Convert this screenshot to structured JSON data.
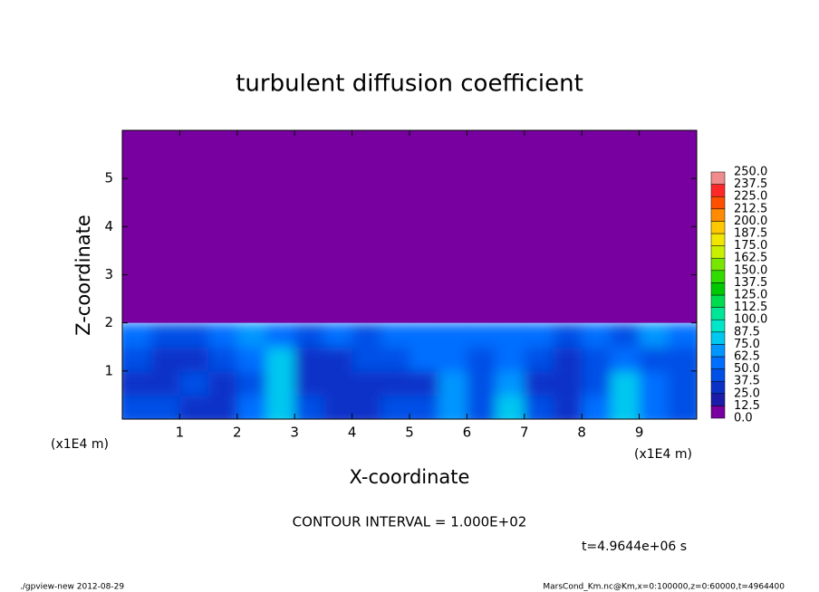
{
  "chart_data": {
    "type": "contour",
    "title": "turbulent diffusion coefficient",
    "xlabel": "X-coordinate",
    "ylabel": "Z-coordinate",
    "unit_label": "(x1E4 m)",
    "xlim": [
      0,
      10
    ],
    "ylim": [
      0,
      6
    ],
    "xticks": [
      1,
      2,
      3,
      4,
      5,
      6,
      7,
      8,
      9
    ],
    "yticks": [
      1,
      2,
      3,
      4,
      5
    ],
    "field": {
      "x_edges": [
        0,
        0.5,
        1,
        1.5,
        2,
        2.5,
        3,
        3.5,
        4,
        4.5,
        5,
        5.5,
        6,
        6.5,
        7,
        7.5,
        8,
        8.5,
        9,
        9.5,
        10
      ],
      "z_edges": [
        0,
        0.5,
        1,
        1.5,
        2,
        6
      ],
      "values": [
        [
          45,
          40,
          35,
          30,
          50,
          75,
          40,
          35,
          30,
          40,
          40,
          70,
          45,
          75,
          40,
          35,
          50,
          85,
          55,
          45
        ],
        [
          35,
          30,
          40,
          30,
          40,
          80,
          35,
          30,
          30,
          35,
          35,
          70,
          40,
          70,
          30,
          35,
          40,
          75,
          60,
          40
        ],
        [
          40,
          35,
          30,
          40,
          60,
          75,
          35,
          35,
          40,
          40,
          55,
          60,
          40,
          50,
          40,
          35,
          45,
          60,
          45,
          40
        ],
        [
          50,
          45,
          45,
          55,
          65,
          55,
          45,
          50,
          45,
          50,
          60,
          55,
          55,
          50,
          55,
          45,
          50,
          45,
          65,
          50
        ],
        [
          0,
          0,
          0,
          0,
          0,
          0,
          0,
          0,
          0,
          0,
          0,
          0,
          0,
          0,
          0,
          0,
          0,
          0,
          0,
          0
        ]
      ]
    },
    "levels": [
      {
        "value": 0,
        "label": "0.0"
      },
      12.5,
      {
        "value": 25,
        "label": "25.0"
      },
      37.5,
      {
        "value": 50,
        "label": "50.0"
      },
      62.5,
      {
        "value": 75,
        "label": "75.0"
      },
      87.5,
      {
        "value": 100,
        "label": "100.0"
      },
      112.5,
      {
        "value": 125,
        "label": "125.0"
      },
      137.5,
      {
        "value": 150,
        "label": "150.0"
      },
      162.5,
      {
        "value": 175,
        "label": "175.0"
      },
      187.5,
      {
        "value": 200,
        "label": "200.0"
      },
      212.5,
      {
        "value": 225,
        "label": "225.0"
      },
      237.5,
      {
        "value": 250,
        "label": "250.0"
      }
    ],
    "colors": [
      "#7800a0",
      "#1c1caa",
      "#0a32c8",
      "#0050e6",
      "#006eff",
      "#0096ff",
      "#00c8f0",
      "#00e6c8",
      "#00e696",
      "#00dc50",
      "#00c800",
      "#32dc00",
      "#78e600",
      "#c8f000",
      "#f0e600",
      "#ffc800",
      "#ff8c00",
      "#ff5000",
      "#ff2828",
      "#f08c8c"
    ],
    "contour_interval_label": "CONTOUR INTERVAL = 1.000E+02",
    "time_label": "t=4.9644e+06 s"
  },
  "footer": {
    "left": "./gpview-new  2012-08-29",
    "right": "MarsCond_Km.nc@Km,x=0:100000,z=0:60000,t=4964400"
  }
}
